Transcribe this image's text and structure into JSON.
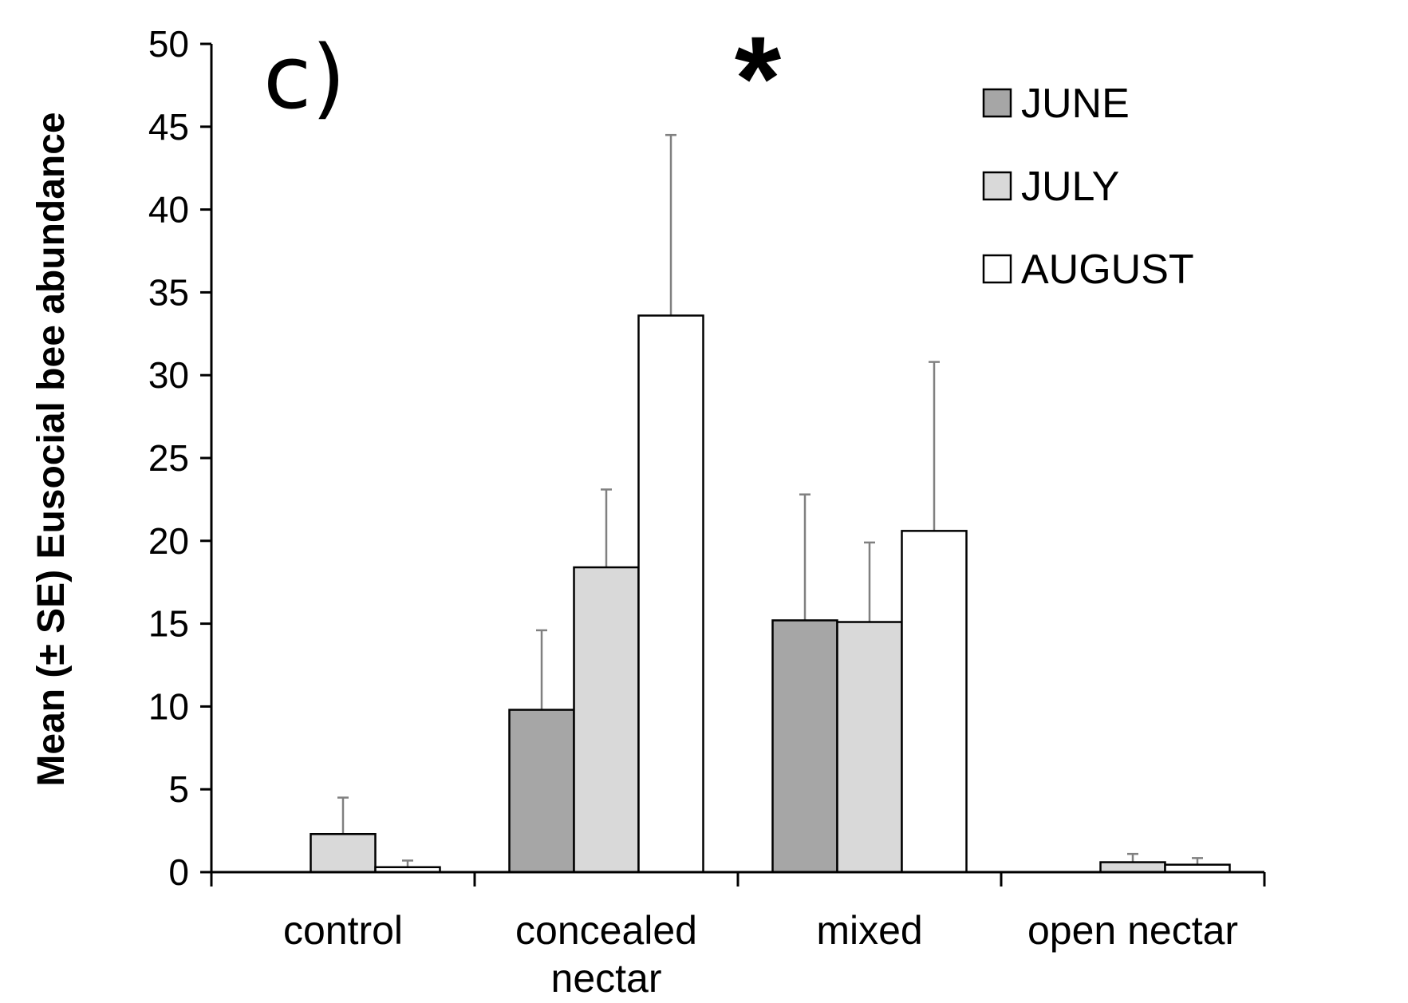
{
  "chart_data": {
    "type": "bar",
    "panel_label": "c)",
    "significance_marker": "*",
    "ylabel": "Mean (± SE) Eusocial bee abundance",
    "xlabel": "",
    "ylim": [
      0,
      50
    ],
    "yticks": [
      0,
      5,
      10,
      15,
      20,
      25,
      30,
      35,
      40,
      45,
      50
    ],
    "grid": false,
    "legend_position": "top-right",
    "categories": [
      "control",
      "concealed nectar",
      "mixed",
      "open nectar"
    ],
    "category_label_lines": [
      [
        "control"
      ],
      [
        "concealed",
        "nectar"
      ],
      [
        "mixed"
      ],
      [
        "open nectar"
      ]
    ],
    "series": [
      {
        "name": "JUNE",
        "color": "#a6a6a6",
        "values": [
          0,
          9.8,
          15.2,
          0
        ],
        "errors": [
          0,
          4.8,
          7.6,
          0
        ]
      },
      {
        "name": "JULY",
        "color": "#d9d9d9",
        "values": [
          2.3,
          18.4,
          15.1,
          0.6
        ],
        "errors": [
          2.2,
          4.7,
          4.8,
          0.5
        ]
      },
      {
        "name": "AUGUST",
        "color": "#ffffff",
        "values": [
          0.3,
          33.6,
          20.6,
          0.45
        ],
        "errors": [
          0.4,
          10.9,
          10.2,
          0.4
        ]
      }
    ]
  }
}
